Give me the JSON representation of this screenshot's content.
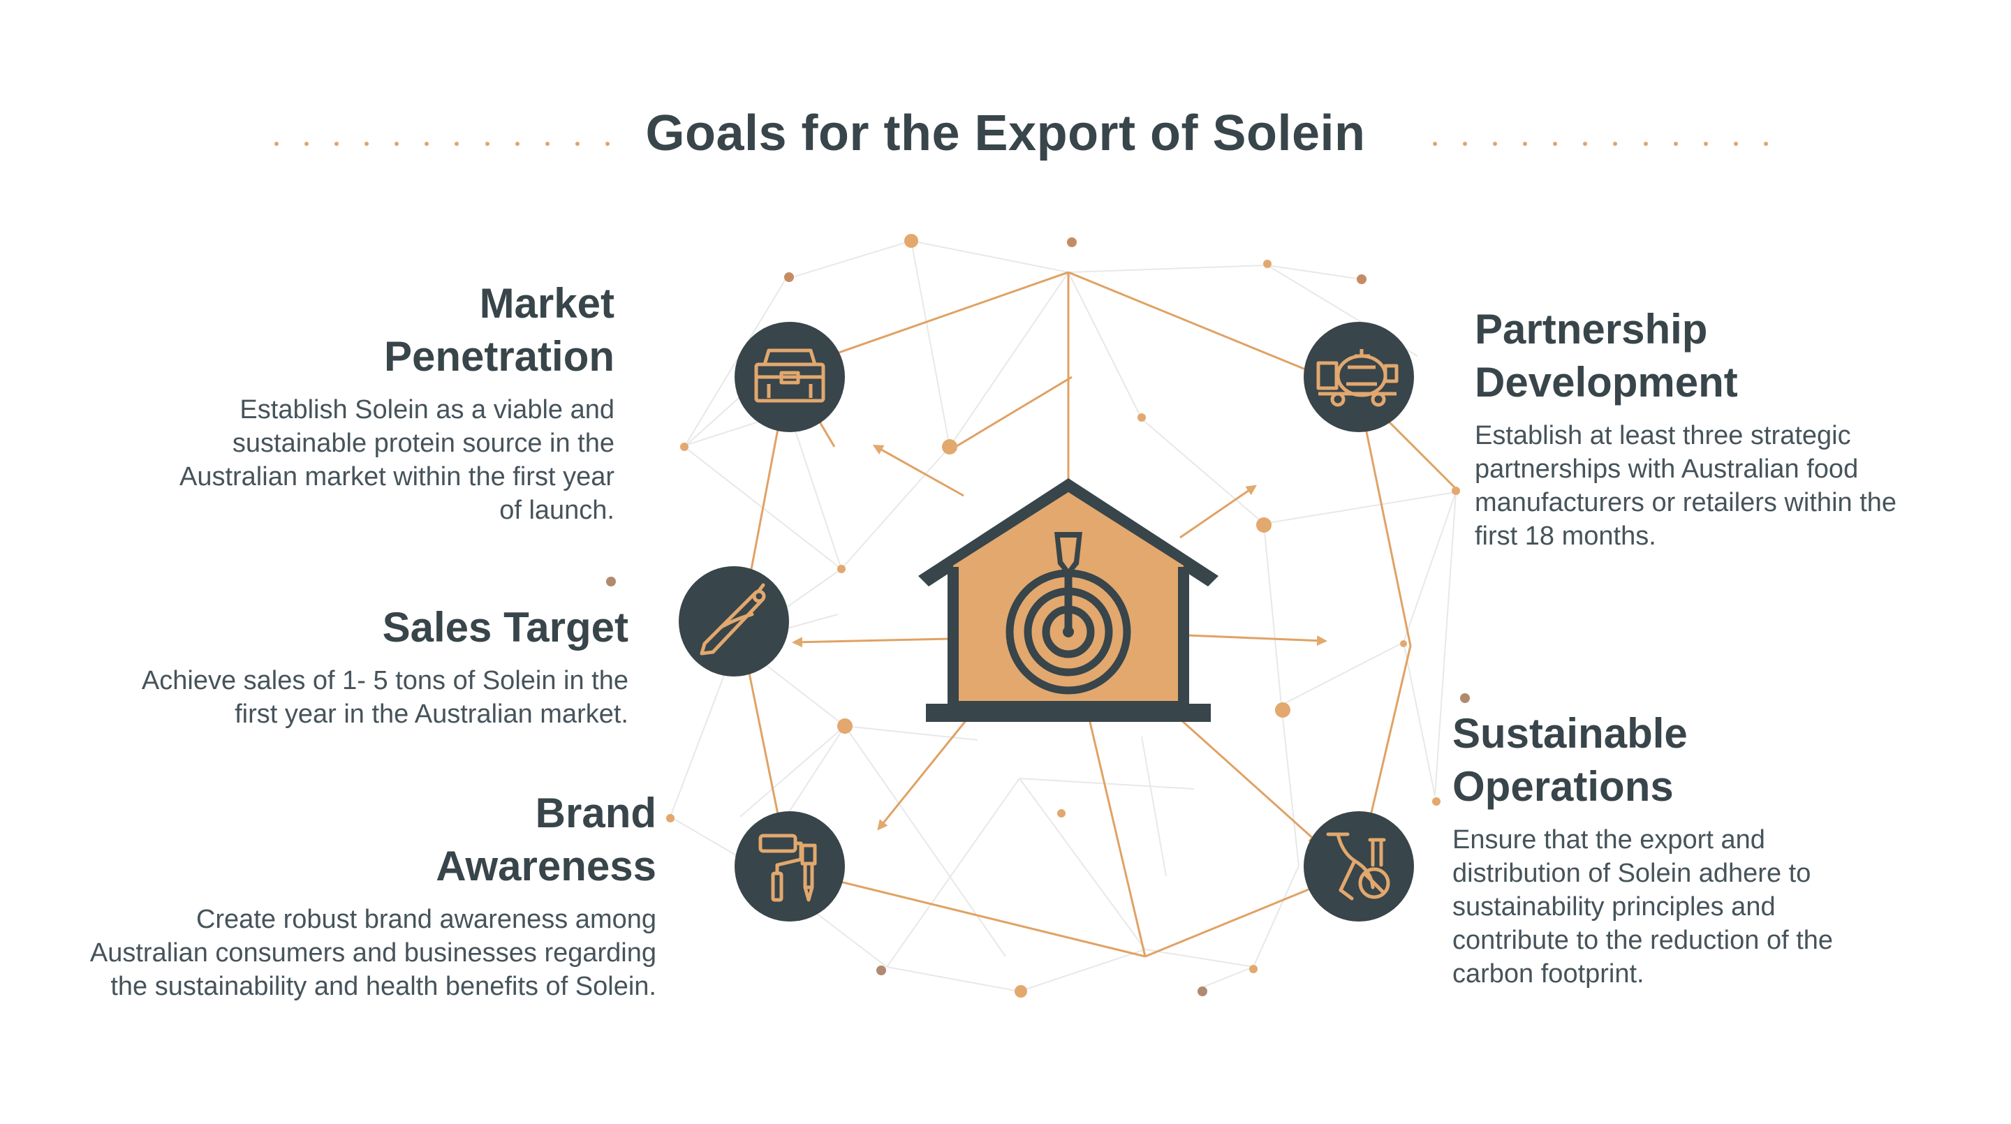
{
  "title": "Goals for the Export of Solein",
  "colors": {
    "dark": "#38454a",
    "accent": "#e2a86e",
    "accent_line": "#e0a264",
    "web_line": "#e6e6e6"
  },
  "center": {
    "icon": "house-target-icon"
  },
  "goals": [
    {
      "id": "market-penetration",
      "title_lines": [
        "Market",
        "Penetration"
      ],
      "description": "Establish Solein as a viable and sustainable protein source in the Australian market within the first year of launch.",
      "icon": "toolbox-icon"
    },
    {
      "id": "sales-target",
      "title_lines": [
        "Sales Target"
      ],
      "description": "Achieve sales of 1- 5 tons of Solein in the first year in the Australian market.",
      "icon": "drafting-compass-icon"
    },
    {
      "id": "brand-awareness",
      "title_lines": [
        "Brand",
        "Awareness"
      ],
      "description": "Create robust brand awareness among Australian consumers and businesses regarding the sustainability and health benefits of Solein.",
      "icon": "paint-roller-brush-icon"
    },
    {
      "id": "partnership-development",
      "title_lines": [
        "Partnership",
        "Development"
      ],
      "description": "Establish at least three strategic partnerships with Australian food manufacturers or retailers within the first 18 months.",
      "icon": "cement-mixer-icon"
    },
    {
      "id": "sustainable-operations",
      "title_lines": [
        "Sustainable",
        "Operations"
      ],
      "description": "Ensure that the export and distribution of Solein adhere to sustainability principles and contribute to the reduction of the carbon footprint.",
      "icon": "wheelbarrow-icon"
    }
  ]
}
